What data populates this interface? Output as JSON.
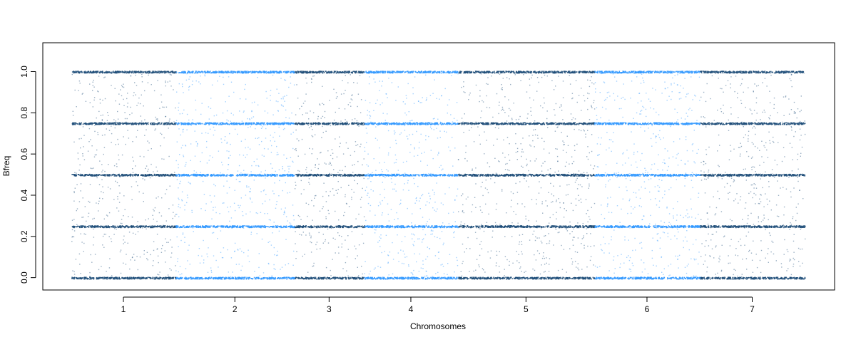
{
  "chart_data": {
    "type": "scatter",
    "xlabel": "Chromosomes",
    "ylabel": "Bfreq",
    "ylim": [
      -0.06,
      1.14
    ],
    "yticks": [
      0.0,
      0.2,
      0.4,
      0.6,
      0.8,
      1.0
    ],
    "ytick_labels": [
      "0.0",
      "0.2",
      "0.4",
      "0.6",
      "0.8",
      "1.0"
    ],
    "xlim": [
      0.0,
      1.0
    ],
    "categories": [
      "1",
      "2",
      "3",
      "4",
      "5",
      "6",
      "7"
    ],
    "segments": [
      {
        "label": "1",
        "start": 0.0,
        "end": 0.142,
        "color": "#1f4e79"
      },
      {
        "label": "2",
        "start": 0.142,
        "end": 0.304,
        "color": "#3399ff"
      },
      {
        "label": "3",
        "start": 0.304,
        "end": 0.399,
        "color": "#1f4e79"
      },
      {
        "label": "4",
        "start": 0.399,
        "end": 0.527,
        "color": "#3399ff"
      },
      {
        "label": "5",
        "start": 0.527,
        "end": 0.713,
        "color": "#1f4e79"
      },
      {
        "label": "6",
        "start": 0.713,
        "end": 0.857,
        "color": "#3399ff"
      },
      {
        "label": "7",
        "start": 0.857,
        "end": 1.0,
        "color": "#1f4e79"
      }
    ],
    "bands": [
      0.0,
      0.25,
      0.5,
      0.75,
      1.0
    ],
    "grid": false,
    "legend": "none"
  }
}
